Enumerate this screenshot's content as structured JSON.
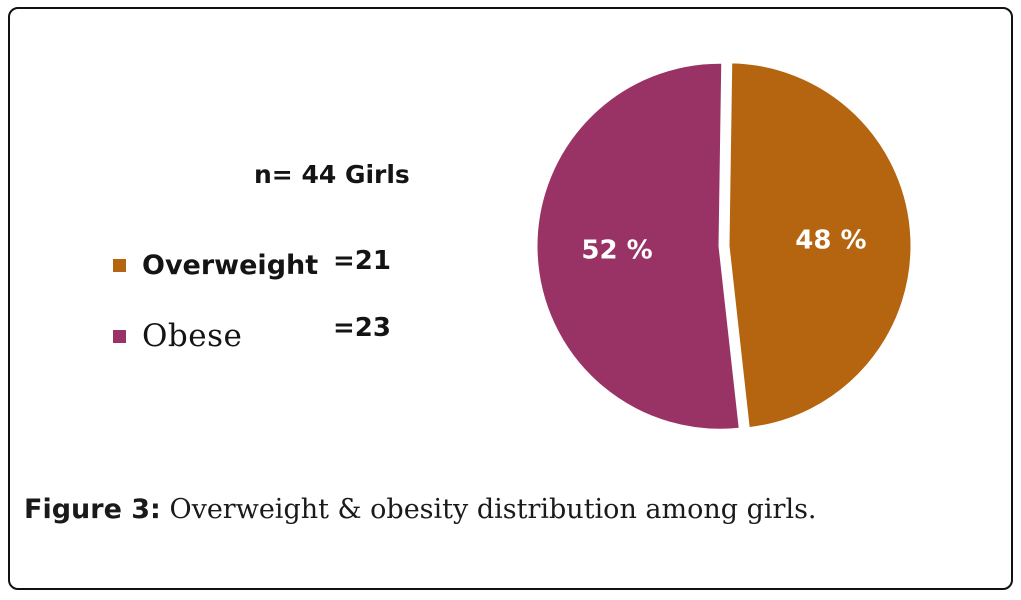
{
  "chart_data": {
    "type": "pie",
    "subtitle": "n= 44 Girls",
    "slices": [
      {
        "name": "Overweight",
        "count_label": "=21",
        "value": 48,
        "label": "48 %",
        "color": "#b5650f"
      },
      {
        "name": "Obese",
        "count_label": "=23",
        "value": 52,
        "label": "52 %",
        "color": "#993366"
      }
    ],
    "legend_position": "left"
  },
  "caption": {
    "label": "Figure 3:",
    "text": " Overweight & obesity distribution among girls."
  }
}
